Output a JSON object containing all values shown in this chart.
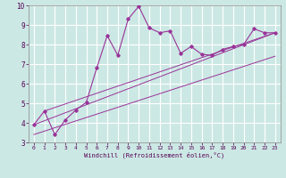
{
  "xlabel": "Windchill (Refroidissement éolien,°C)",
  "background_color": "#cce8e4",
  "grid_color": "#ffffff",
  "line_color": "#993399",
  "xlim": [
    -0.5,
    23.5
  ],
  "ylim": [
    3,
    10
  ],
  "xticks": [
    0,
    1,
    2,
    3,
    4,
    5,
    6,
    7,
    8,
    9,
    10,
    11,
    12,
    13,
    14,
    15,
    16,
    17,
    18,
    19,
    20,
    21,
    22,
    23
  ],
  "yticks": [
    3,
    4,
    5,
    6,
    7,
    8,
    9,
    10
  ],
  "main_x": [
    0,
    1,
    2,
    3,
    4,
    5,
    6,
    7,
    8,
    9,
    10,
    11,
    12,
    13,
    14,
    15,
    16,
    17,
    18,
    19,
    20,
    21,
    22,
    23
  ],
  "main_y": [
    3.9,
    4.6,
    3.4,
    4.15,
    4.65,
    5.05,
    6.8,
    8.45,
    7.45,
    9.3,
    9.95,
    8.85,
    8.6,
    8.7,
    7.55,
    7.9,
    7.5,
    7.45,
    7.75,
    7.9,
    8.0,
    8.8,
    8.6,
    8.6
  ],
  "line2_x": [
    1,
    23
  ],
  "line2_y": [
    4.6,
    8.6
  ],
  "line3_x": [
    0,
    23
  ],
  "line3_y": [
    3.9,
    8.6
  ],
  "line4_x": [
    0,
    23
  ],
  "line4_y": [
    3.4,
    7.4
  ]
}
